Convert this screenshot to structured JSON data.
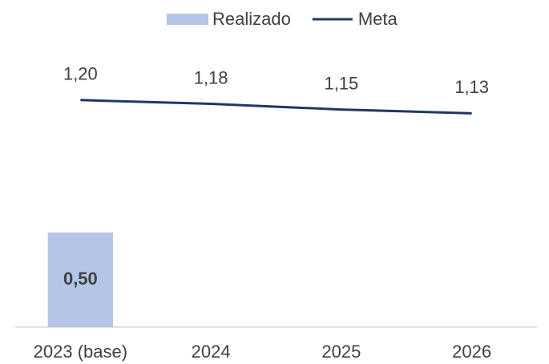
{
  "chart_data": {
    "type": "bar",
    "categories": [
      "2023 (base)",
      "2024",
      "2025",
      "2026"
    ],
    "series": [
      {
        "name": "Realizado",
        "type": "bar",
        "color": "#b4c5e7",
        "values": [
          0.5,
          null,
          null,
          null
        ],
        "value_labels": [
          "0,50",
          null,
          null,
          null
        ]
      },
      {
        "name": "Meta",
        "type": "line",
        "color": "#1f3864",
        "values": [
          1.2,
          1.18,
          1.15,
          1.13
        ],
        "value_labels": [
          "1,20",
          "1,18",
          "1,15",
          "1,13"
        ]
      }
    ],
    "legend": "top"
  }
}
